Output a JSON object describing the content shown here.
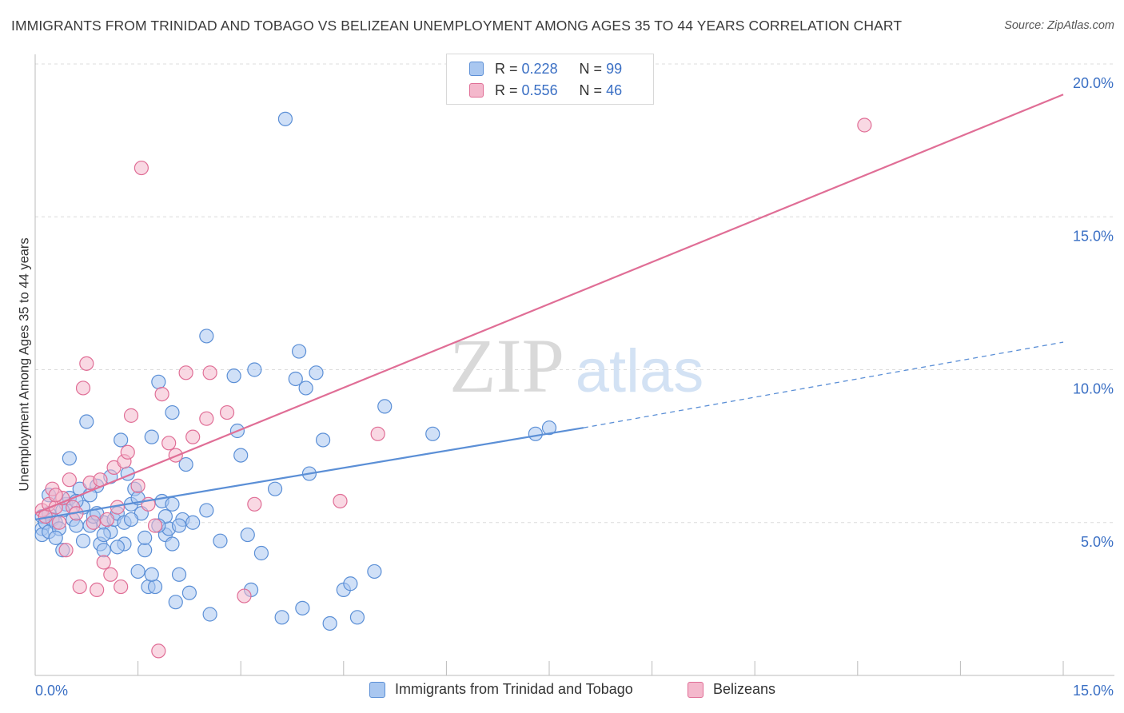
{
  "title": "IMMIGRANTS FROM TRINIDAD AND TOBAGO VS BELIZEAN UNEMPLOYMENT AMONG AGES 35 TO 44 YEARS CORRELATION CHART",
  "source": "Source: ZipAtlas.com",
  "watermark": {
    "zip": "ZIP",
    "atlas": "atlas"
  },
  "legend_top": [
    {
      "r_label": "R =",
      "r_value": "0.228",
      "n_label": "N =",
      "n_value": "99",
      "color": "#a9c7f0"
    },
    {
      "r_label": "R =",
      "r_value": "0.556",
      "n_label": "N =",
      "n_value": "46",
      "color": "#f4b8cc"
    }
  ],
  "legend_bottom": [
    {
      "label": "Immigrants from Trinidad and Tobago",
      "color": "#a9c7f0"
    },
    {
      "label": "Belizeans",
      "color": "#f4b8cc"
    }
  ],
  "chart_data": {
    "type": "scatter",
    "xlabel": "",
    "ylabel": "Unemployment Among Ages 35 to 44 years",
    "xlim": [
      0,
      15
    ],
    "ylim": [
      0,
      20
    ],
    "x_tick_labels": [
      {
        "value": 0,
        "label": "0.0%"
      },
      {
        "value": 15,
        "label": "15.0%"
      }
    ],
    "y_tick_labels": [
      {
        "value": 5,
        "label": "5.0%"
      },
      {
        "value": 10,
        "label": "10.0%"
      },
      {
        "value": 15,
        "label": "15.0%"
      },
      {
        "value": 20,
        "label": "20.0%"
      }
    ],
    "series": [
      {
        "name": "Immigrants from Trinidad and Tobago",
        "color": "#5b8fd6",
        "fill": "#a9c7f0",
        "trend": {
          "x0": 0,
          "y0": 5.1,
          "x1": 8.0,
          "y1": 8.1,
          "dash_to_x": 15,
          "dash_to_y": 10.9
        },
        "points": [
          [
            0.1,
            4.8
          ],
          [
            0.1,
            5.2
          ],
          [
            0.1,
            4.6
          ],
          [
            0.15,
            5.0
          ],
          [
            0.2,
            4.7
          ],
          [
            0.2,
            5.3
          ],
          [
            0.25,
            5.1
          ],
          [
            0.3,
            5.0
          ],
          [
            0.35,
            4.8
          ],
          [
            0.4,
            4.1
          ],
          [
            0.45,
            5.6
          ],
          [
            0.5,
            5.8
          ],
          [
            0.5,
            7.1
          ],
          [
            0.55,
            5.1
          ],
          [
            0.6,
            4.9
          ],
          [
            0.65,
            6.1
          ],
          [
            0.7,
            4.4
          ],
          [
            0.7,
            5.5
          ],
          [
            0.75,
            8.3
          ],
          [
            0.8,
            4.9
          ],
          [
            0.85,
            5.2
          ],
          [
            0.9,
            6.2
          ],
          [
            0.95,
            4.3
          ],
          [
            1.0,
            5.0
          ],
          [
            1.0,
            4.1
          ],
          [
            1.1,
            4.7
          ],
          [
            1.15,
            5.1
          ],
          [
            1.2,
            5.3
          ],
          [
            1.25,
            7.7
          ],
          [
            1.3,
            4.3
          ],
          [
            1.35,
            6.6
          ],
          [
            1.4,
            5.6
          ],
          [
            1.45,
            6.1
          ],
          [
            1.5,
            3.4
          ],
          [
            1.55,
            5.3
          ],
          [
            1.6,
            4.1
          ],
          [
            1.65,
            2.9
          ],
          [
            1.7,
            7.8
          ],
          [
            1.75,
            2.9
          ],
          [
            1.8,
            9.6
          ],
          [
            1.85,
            5.7
          ],
          [
            1.9,
            4.6
          ],
          [
            1.95,
            4.8
          ],
          [
            2.0,
            8.6
          ],
          [
            2.0,
            4.3
          ],
          [
            2.05,
            2.4
          ],
          [
            2.1,
            3.3
          ],
          [
            2.15,
            5.1
          ],
          [
            2.2,
            6.9
          ],
          [
            2.25,
            2.7
          ],
          [
            2.3,
            5.0
          ],
          [
            2.5,
            11.1
          ],
          [
            2.5,
            5.4
          ],
          [
            2.55,
            2.0
          ],
          [
            2.7,
            4.4
          ],
          [
            2.9,
            9.8
          ],
          [
            2.95,
            8.0
          ],
          [
            3.0,
            7.2
          ],
          [
            3.1,
            4.6
          ],
          [
            3.15,
            2.8
          ],
          [
            3.2,
            10.0
          ],
          [
            3.3,
            4.0
          ],
          [
            3.5,
            6.1
          ],
          [
            3.6,
            1.9
          ],
          [
            3.65,
            18.2
          ],
          [
            3.8,
            9.7
          ],
          [
            3.85,
            10.6
          ],
          [
            3.9,
            2.2
          ],
          [
            3.95,
            9.4
          ],
          [
            4.0,
            6.6
          ],
          [
            4.1,
            9.9
          ],
          [
            4.2,
            7.7
          ],
          [
            4.3,
            1.7
          ],
          [
            4.5,
            2.8
          ],
          [
            4.6,
            3.0
          ],
          [
            4.7,
            1.9
          ],
          [
            4.95,
            3.4
          ],
          [
            5.1,
            8.8
          ],
          [
            5.8,
            7.9
          ],
          [
            7.3,
            7.9
          ],
          [
            7.5,
            8.1
          ],
          [
            0.3,
            4.5
          ],
          [
            0.6,
            5.7
          ],
          [
            0.9,
            5.3
          ],
          [
            1.1,
            6.5
          ],
          [
            1.3,
            5.0
          ],
          [
            1.5,
            5.8
          ],
          [
            1.7,
            3.3
          ],
          [
            1.9,
            5.2
          ],
          [
            2.1,
            4.9
          ],
          [
            0.2,
            5.9
          ],
          [
            0.4,
            5.4
          ],
          [
            0.8,
            5.9
          ],
          [
            1.0,
            4.6
          ],
          [
            1.2,
            4.2
          ],
          [
            1.4,
            5.1
          ],
          [
            1.6,
            4.5
          ],
          [
            1.8,
            4.9
          ],
          [
            2.0,
            5.6
          ]
        ]
      },
      {
        "name": "Belizeans",
        "color": "#e06e96",
        "fill": "#f4b8cc",
        "trend": {
          "x0": 0,
          "y0": 5.3,
          "x1": 15,
          "y1": 19.0
        },
        "points": [
          [
            0.1,
            5.4
          ],
          [
            0.15,
            5.2
          ],
          [
            0.2,
            5.6
          ],
          [
            0.25,
            6.1
          ],
          [
            0.3,
            5.5
          ],
          [
            0.35,
            5.0
          ],
          [
            0.4,
            5.8
          ],
          [
            0.45,
            4.1
          ],
          [
            0.5,
            6.4
          ],
          [
            0.55,
            5.5
          ],
          [
            0.6,
            5.3
          ],
          [
            0.65,
            2.9
          ],
          [
            0.7,
            9.4
          ],
          [
            0.75,
            10.2
          ],
          [
            0.8,
            6.3
          ],
          [
            0.85,
            5.0
          ],
          [
            0.9,
            2.8
          ],
          [
            0.95,
            6.4
          ],
          [
            1.0,
            3.7
          ],
          [
            1.05,
            5.1
          ],
          [
            1.1,
            3.3
          ],
          [
            1.15,
            6.8
          ],
          [
            1.2,
            5.5
          ],
          [
            1.25,
            2.9
          ],
          [
            1.3,
            7.0
          ],
          [
            1.35,
            7.3
          ],
          [
            1.4,
            8.5
          ],
          [
            1.5,
            6.2
          ],
          [
            1.55,
            16.6
          ],
          [
            1.65,
            5.6
          ],
          [
            1.75,
            4.9
          ],
          [
            1.85,
            9.2
          ],
          [
            1.95,
            7.6
          ],
          [
            2.05,
            7.2
          ],
          [
            2.2,
            9.9
          ],
          [
            2.3,
            7.8
          ],
          [
            2.5,
            8.4
          ],
          [
            2.55,
            9.9
          ],
          [
            3.2,
            5.6
          ],
          [
            2.8,
            8.6
          ],
          [
            3.05,
            2.6
          ],
          [
            4.45,
            5.7
          ],
          [
            5.0,
            7.9
          ],
          [
            12.1,
            18.0
          ],
          [
            1.8,
            0.8
          ],
          [
            0.3,
            5.9
          ]
        ]
      }
    ]
  }
}
